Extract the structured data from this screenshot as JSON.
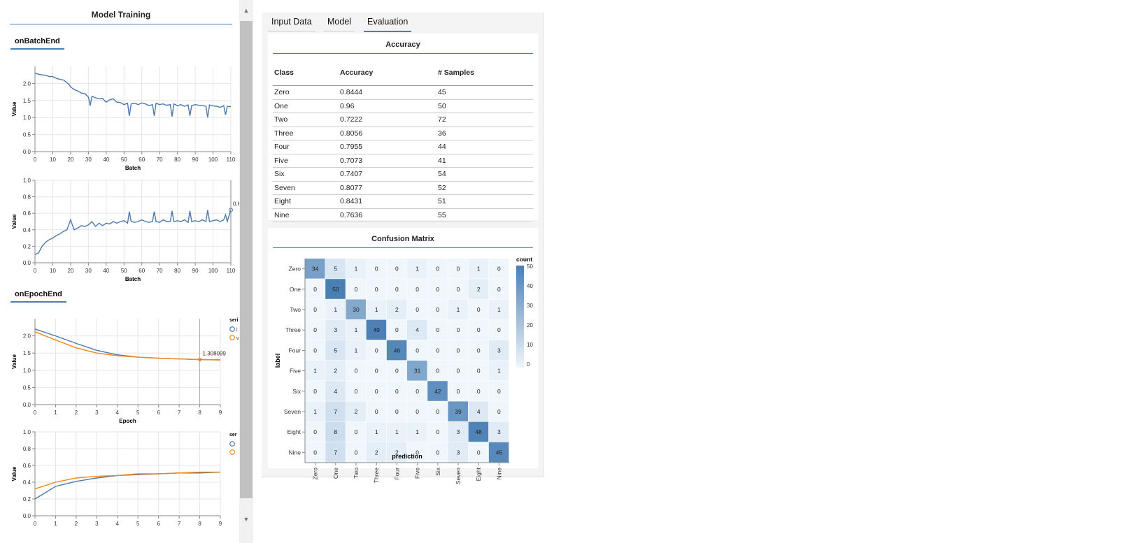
{
  "left": {
    "title": "Model Training",
    "batch_tab": "onBatchEnd",
    "epoch_tab": "onEpochEnd",
    "batch_charts": [
      {
        "ylabel": "Value",
        "xlabel": "Batch",
        "yticks": [
          "0.0",
          "0.5",
          "1.0",
          "1.5",
          "2.0"
        ],
        "xticks": [
          "0",
          "10",
          "20",
          "30",
          "40",
          "50",
          "60",
          "70",
          "80",
          "90",
          "100",
          "110"
        ]
      },
      {
        "ylabel": "Value",
        "xlabel": "Batch",
        "yticks": [
          "0.0",
          "0.2",
          "0.4",
          "0.6",
          "0.8",
          "1.0"
        ],
        "xticks": [
          "0",
          "10",
          "20",
          "30",
          "40",
          "50",
          "60",
          "70",
          "80",
          "90",
          "100",
          "110"
        ],
        "tooltip": "0.6"
      }
    ],
    "epoch_charts": [
      {
        "ylabel": "Value",
        "xlabel": "Epoch",
        "yticks": [
          "0.0",
          "0.5",
          "1.0",
          "1.5",
          "2.0"
        ],
        "xticks": [
          "0",
          "1",
          "2",
          "3",
          "4",
          "5",
          "6",
          "7",
          "8",
          "9"
        ],
        "tooltip": "1.308099",
        "legend_title": "seri",
        "legend_items": [
          "l",
          "v"
        ]
      },
      {
        "ylabel": "Value",
        "xlabel": "",
        "yticks": [
          "0.0",
          "0.2",
          "0.4",
          "0.6",
          "0.8",
          "1.0"
        ],
        "xticks": [
          "0",
          "1",
          "2",
          "3",
          "4",
          "5",
          "6",
          "7",
          "8",
          "9"
        ],
        "legend_title": "ser"
      }
    ]
  },
  "tabs": [
    "Input Data",
    "Model",
    "Evaluation"
  ],
  "accuracy": {
    "title": "Accuracy",
    "headers": [
      "Class",
      "Accuracy",
      "# Samples"
    ],
    "rows": [
      [
        "Zero",
        "0.8444",
        "45"
      ],
      [
        "One",
        "0.96",
        "50"
      ],
      [
        "Two",
        "0.7222",
        "72"
      ],
      [
        "Three",
        "0.8056",
        "36"
      ],
      [
        "Four",
        "0.7955",
        "44"
      ],
      [
        "Five",
        "0.7073",
        "41"
      ],
      [
        "Six",
        "0.7407",
        "54"
      ],
      [
        "Seven",
        "0.8077",
        "52"
      ],
      [
        "Eight",
        "0.8431",
        "51"
      ],
      [
        "Nine",
        "0.7636",
        "55"
      ]
    ]
  },
  "confusion": {
    "title": "Confusion Matrix",
    "ylabel": "label",
    "xlabel": "prediction",
    "legend_title": "count",
    "legend_ticks": [
      "50",
      "40",
      "30",
      "20",
      "10",
      "0"
    ],
    "labels": [
      "Zero",
      "One",
      "Two",
      "Three",
      "Four",
      "Five",
      "Six",
      "Seven",
      "Eight",
      "Nine"
    ]
  },
  "chart_data": [
    {
      "type": "line",
      "title": "",
      "xlabel": "Batch",
      "ylabel": "Value",
      "xlim": [
        0,
        110
      ],
      "ylim": [
        0,
        2.5
      ],
      "x": [
        0,
        2,
        4,
        6,
        8,
        10,
        12,
        14,
        16,
        18,
        19,
        20,
        22,
        24,
        26,
        28,
        30,
        31,
        32,
        34,
        36,
        38,
        40,
        42,
        44,
        46,
        48,
        50,
        52,
        53,
        54,
        56,
        58,
        60,
        62,
        64,
        66,
        67,
        68,
        70,
        72,
        74,
        76,
        77,
        78,
        80,
        82,
        84,
        86,
        87,
        88,
        90,
        92,
        94,
        96,
        97,
        98,
        100,
        102,
        104,
        106,
        107,
        108,
        110
      ],
      "series": [
        {
          "values": [
            2.3,
            2.27,
            2.25,
            2.24,
            2.2,
            2.2,
            2.15,
            2.12,
            2.1,
            2.02,
            1.98,
            1.9,
            1.82,
            1.78,
            1.72,
            1.7,
            1.6,
            1.35,
            1.62,
            1.58,
            1.55,
            1.56,
            1.45,
            1.52,
            1.55,
            1.45,
            1.44,
            1.38,
            1.42,
            1.05,
            1.4,
            1.42,
            1.38,
            1.43,
            1.4,
            1.35,
            1.38,
            1.05,
            1.42,
            1.38,
            1.4,
            1.36,
            1.38,
            1.03,
            1.4,
            1.35,
            1.38,
            1.33,
            1.37,
            1.05,
            1.35,
            1.38,
            1.36,
            1.35,
            1.33,
            1.0,
            1.37,
            1.34,
            1.33,
            1.3,
            1.35,
            1.08,
            1.33,
            1.32
          ]
        }
      ]
    },
    {
      "type": "line",
      "title": "",
      "xlabel": "Batch",
      "ylabel": "Value",
      "xlim": [
        0,
        110
      ],
      "ylim": [
        0,
        1
      ],
      "x": [
        0,
        2,
        4,
        6,
        8,
        10,
        12,
        14,
        16,
        18,
        20,
        22,
        24,
        26,
        28,
        30,
        32,
        34,
        36,
        38,
        40,
        42,
        44,
        46,
        48,
        50,
        52,
        53,
        54,
        56,
        58,
        60,
        62,
        64,
        66,
        67,
        68,
        70,
        72,
        74,
        76,
        77,
        78,
        80,
        82,
        84,
        86,
        87,
        88,
        90,
        92,
        94,
        96,
        97,
        98,
        100,
        102,
        104,
        106,
        107,
        108,
        110
      ],
      "series": [
        {
          "values": [
            0.1,
            0.12,
            0.2,
            0.25,
            0.28,
            0.3,
            0.33,
            0.35,
            0.38,
            0.4,
            0.52,
            0.4,
            0.42,
            0.45,
            0.44,
            0.46,
            0.5,
            0.44,
            0.48,
            0.45,
            0.48,
            0.47,
            0.5,
            0.48,
            0.5,
            0.51,
            0.48,
            0.62,
            0.5,
            0.49,
            0.5,
            0.52,
            0.5,
            0.49,
            0.5,
            0.62,
            0.5,
            0.49,
            0.52,
            0.5,
            0.5,
            0.63,
            0.5,
            0.51,
            0.5,
            0.52,
            0.49,
            0.63,
            0.5,
            0.51,
            0.5,
            0.52,
            0.5,
            0.64,
            0.5,
            0.51,
            0.52,
            0.5,
            0.52,
            0.58,
            0.5,
            0.64
          ]
        }
      ]
    },
    {
      "type": "line",
      "title": "",
      "xlabel": "Epoch",
      "ylabel": "Value",
      "xlim": [
        0,
        9
      ],
      "ylim": [
        0,
        2.5
      ],
      "x": [
        0,
        1,
        2,
        3,
        4,
        5,
        6,
        7,
        8,
        9
      ],
      "series": [
        {
          "values": [
            2.2,
            2.0,
            1.78,
            1.58,
            1.45,
            1.38,
            1.35,
            1.33,
            1.31,
            1.3
          ]
        },
        {
          "values": [
            2.12,
            1.88,
            1.65,
            1.5,
            1.42,
            1.38,
            1.35,
            1.33,
            1.31,
            1.3
          ]
        }
      ]
    },
    {
      "type": "line",
      "title": "",
      "xlabel": "",
      "ylabel": "Value",
      "xlim": [
        0,
        9
      ],
      "ylim": [
        0,
        1
      ],
      "x": [
        0,
        1,
        2,
        3,
        4,
        5,
        6,
        7,
        8,
        9
      ],
      "series": [
        {
          "values": [
            0.2,
            0.35,
            0.41,
            0.45,
            0.48,
            0.49,
            0.5,
            0.51,
            0.51,
            0.52
          ]
        },
        {
          "values": [
            0.32,
            0.4,
            0.45,
            0.47,
            0.48,
            0.5,
            0.5,
            0.51,
            0.52,
            0.52
          ]
        }
      ]
    },
    {
      "type": "heatmap",
      "title": "Confusion Matrix",
      "xlabel": "prediction",
      "ylabel": "label",
      "x": [
        "Zero",
        "One",
        "Two",
        "Three",
        "Four",
        "Five",
        "Six",
        "Seven",
        "Eight",
        "Nine"
      ],
      "y": [
        "Zero",
        "One",
        "Two",
        "Three",
        "Four",
        "Five",
        "Six",
        "Seven",
        "Eight",
        "Nine"
      ],
      "values": [
        [
          34,
          5,
          1,
          0,
          0,
          1,
          0,
          0,
          1,
          0
        ],
        [
          0,
          50,
          0,
          0,
          0,
          0,
          0,
          0,
          2,
          0
        ],
        [
          0,
          1,
          30,
          1,
          2,
          0,
          0,
          1,
          0,
          1
        ],
        [
          0,
          3,
          1,
          49,
          0,
          4,
          0,
          0,
          0,
          0
        ],
        [
          0,
          5,
          1,
          0,
          46,
          0,
          0,
          0,
          0,
          3
        ],
        [
          1,
          2,
          0,
          0,
          0,
          31,
          0,
          0,
          0,
          1
        ],
        [
          0,
          4,
          0,
          0,
          0,
          0,
          42,
          0,
          0,
          0
        ],
        [
          1,
          7,
          2,
          0,
          0,
          0,
          0,
          39,
          4,
          0
        ],
        [
          0,
          8,
          0,
          1,
          1,
          1,
          0,
          3,
          48,
          3
        ],
        [
          0,
          7,
          0,
          2,
          2,
          0,
          0,
          3,
          0,
          45
        ]
      ]
    }
  ],
  "colors": {
    "accent": "#4a7fb4",
    "series_a": "#4c78a8",
    "series_b": "#f58518"
  }
}
